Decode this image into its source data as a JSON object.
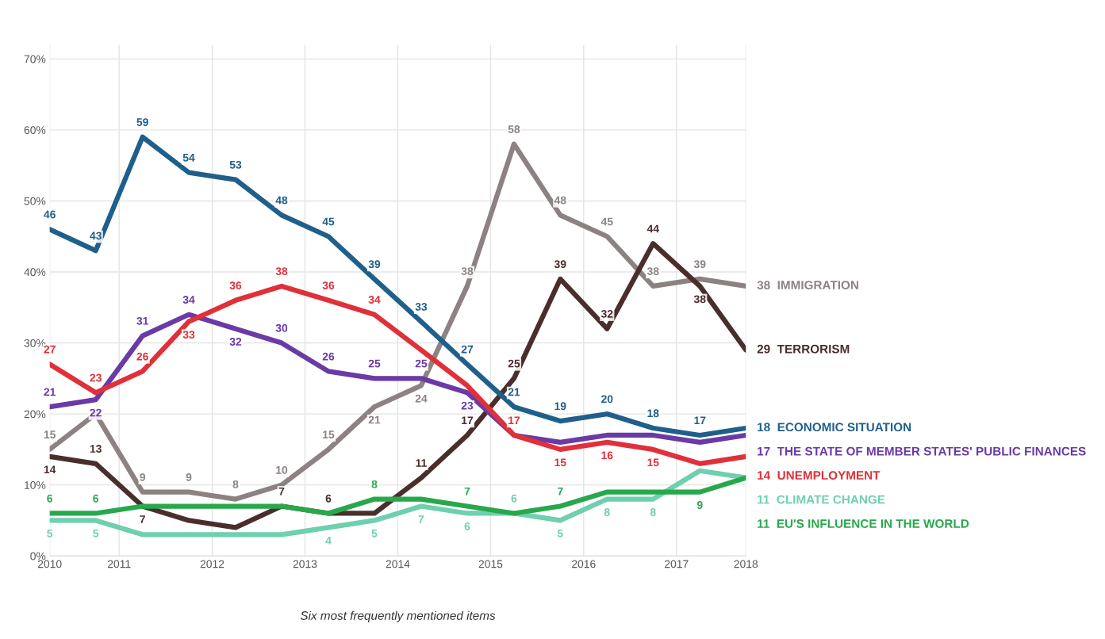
{
  "chart_data": {
    "type": "line",
    "x": [
      "2010-11",
      "2011-05",
      "2011-11",
      "2012-05",
      "2012-11",
      "2013-05",
      "2013-11",
      "2014-05",
      "2014-11",
      "2015-05",
      "2015-11",
      "2016-05",
      "2016-11",
      "2017-05",
      "2017-11",
      "2018-05"
    ],
    "xlim": [
      "2010-11",
      "2018-05"
    ],
    "xticks": [
      {
        "value": "2010-11",
        "label": "2010"
      },
      {
        "value": "2011-08",
        "label": "2011"
      },
      {
        "value": "2012-08",
        "label": "2012"
      },
      {
        "value": "2013-08",
        "label": "2013"
      },
      {
        "value": "2014-08",
        "label": "2014"
      },
      {
        "value": "2015-08",
        "label": "2015"
      },
      {
        "value": "2016-08",
        "label": "2016"
      },
      {
        "value": "2017-08",
        "label": "2017"
      },
      {
        "value": "2018-05",
        "label": "2018"
      }
    ],
    "ylim": [
      0,
      72
    ],
    "yticks": [
      {
        "value": 0,
        "label": "0%"
      },
      {
        "value": 10,
        "label": "10%"
      },
      {
        "value": 20,
        "label": "20%"
      },
      {
        "value": 30,
        "label": "30%"
      },
      {
        "value": 40,
        "label": "40%"
      },
      {
        "value": 50,
        "label": "50%"
      },
      {
        "value": 60,
        "label": "60%"
      },
      {
        "value": 70,
        "label": "70%"
      }
    ],
    "grid": true,
    "legend": false,
    "marker": "none",
    "line_style": "solid",
    "series": [
      {
        "name": "IMMIGRATION",
        "color": "#8c8282",
        "values": [
          15,
          20,
          9,
          9,
          8,
          10,
          15,
          21,
          24,
          38,
          58,
          48,
          45,
          38,
          39,
          38
        ],
        "value_labels": [
          "15",
          null,
          "9",
          "9",
          "8",
          "10",
          "15",
          "21",
          "24",
          "38",
          "58",
          "48",
          "45",
          "38",
          "39",
          "38"
        ]
      },
      {
        "name": "TERRORISM",
        "color": "#4a2e2b",
        "values": [
          14,
          13,
          7,
          5,
          4,
          7,
          6,
          6,
          11,
          17,
          25,
          39,
          32,
          44,
          38,
          29
        ],
        "value_labels": [
          "14",
          "13",
          "7",
          null,
          null,
          "7",
          "6",
          null,
          "11",
          "17",
          "25",
          "39",
          "32",
          "44",
          "38",
          "29"
        ]
      },
      {
        "name": "ECONOMIC SITUATION",
        "color": "#1f5f8b",
        "values": [
          46,
          43,
          59,
          54,
          53,
          48,
          45,
          39,
          33,
          27,
          21,
          19,
          20,
          18,
          17,
          18
        ],
        "value_labels": [
          "46",
          "43",
          "59",
          "54",
          "53",
          "48",
          "45",
          "39",
          "33",
          "27",
          "21",
          "19",
          "20",
          "18",
          "17",
          "18"
        ]
      },
      {
        "name": "THE STATE OF MEMBER STATES' PUBLIC FINANCES",
        "color": "#6a3aa6",
        "values": [
          21,
          22,
          31,
          34,
          32,
          30,
          26,
          25,
          25,
          23,
          17,
          16,
          17,
          17,
          16,
          17
        ],
        "value_labels": [
          "21",
          "22",
          "31",
          "34",
          "32",
          "30",
          "26",
          "25",
          "25",
          "23",
          null,
          null,
          null,
          null,
          null,
          "17"
        ]
      },
      {
        "name": "UNEMPLOYMENT",
        "color": "#e0303a",
        "values": [
          27,
          23,
          26,
          33,
          36,
          38,
          36,
          34,
          29,
          24,
          17,
          15,
          16,
          15,
          13,
          14
        ],
        "value_labels": [
          "27",
          "23",
          "26",
          "33",
          "36",
          "38",
          "36",
          "34",
          null,
          null,
          "17",
          "15",
          "16",
          "15",
          null,
          "14"
        ]
      },
      {
        "name": "CLIMATE CHANGE",
        "color": "#6fcfae",
        "values": [
          5,
          5,
          3,
          3,
          3,
          3,
          4,
          5,
          7,
          6,
          6,
          5,
          8,
          8,
          12,
          11
        ],
        "value_labels": [
          "5",
          "5",
          null,
          null,
          null,
          null,
          "4",
          "5",
          "7",
          "6",
          "6",
          "5",
          "8",
          "8",
          null,
          "11"
        ]
      },
      {
        "name": "EU'S INFLUENCE IN THE WORLD",
        "color": "#28a84c",
        "values": [
          6,
          6,
          7,
          7,
          7,
          7,
          6,
          8,
          8,
          7,
          6,
          7,
          9,
          9,
          9,
          11
        ],
        "value_labels": [
          "6",
          "6",
          null,
          null,
          null,
          null,
          null,
          "8",
          null,
          "7",
          null,
          "7",
          null,
          null,
          "9",
          "11"
        ]
      }
    ],
    "annotations": [
      "Six most frequently mentioned items"
    ]
  }
}
